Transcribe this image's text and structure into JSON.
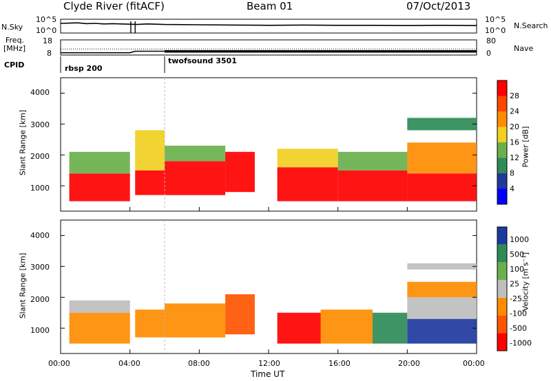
{
  "header": {
    "station": "Clyde River (fitACF)",
    "beam": "Beam 01",
    "date": "07/Oct/2013"
  },
  "noise_panel": {
    "left_label": "N.Sky",
    "left_ticks": [
      "10^5",
      "10^0"
    ],
    "right_ticks": [
      "10^5",
      "10^0"
    ],
    "right_label": "N.Search"
  },
  "freq_panel": {
    "left_label_1": "Freq.",
    "left_label_2": "[MHz]",
    "left_ticks": [
      "18",
      "8"
    ],
    "right_ticks": [
      "80",
      "0"
    ],
    "right_label": "Nave"
  },
  "cpid": {
    "label": "CPID",
    "programs": [
      "rbsp 200",
      "twofsound 3501"
    ]
  },
  "power_panel": {
    "ylabel": "Slant Range [km]",
    "yticks": [
      "4000",
      "3000",
      "2000",
      "1000"
    ],
    "colorbar_label": "Power [dB]",
    "colorbar_ticks": [
      "28",
      "24",
      "20",
      "16",
      "12",
      "8",
      "4"
    ]
  },
  "velocity_panel": {
    "ylabel": "Slant Range [km]",
    "yticks": [
      "4000",
      "3000",
      "2000",
      "1000"
    ],
    "colorbar_label": "Velocity [m s⁻¹]",
    "colorbar_ticks": [
      "1000",
      "500",
      "100",
      "25",
      "-25",
      "-100",
      "-500",
      "-1000"
    ]
  },
  "xaxis": {
    "label": "Time UT",
    "ticks": [
      "00:00",
      "04:00",
      "08:00",
      "12:00",
      "16:00",
      "20:00",
      "00:00"
    ]
  },
  "colors": {
    "power_scale": [
      "#0000ff",
      "#1e3a9e",
      "#2e8b57",
      "#6ab04c",
      "#f0d020",
      "#ff8c00",
      "#ff4500",
      "#ff0000"
    ],
    "velocity_scale": [
      "#1e3a9e",
      "#2e8b57",
      "#6ab04c",
      "#bebebe",
      "#ff8c00",
      "#ff5500",
      "#ff0000"
    ]
  },
  "chart_data": [
    {
      "type": "line",
      "x_range_hours": [
        0,
        24
      ],
      "series": [
        {
          "values": [
            [
              0,
              3.5
            ],
            [
              0.5,
              3.6
            ],
            [
              1.0,
              3.7
            ],
            [
              1.5,
              3.4
            ],
            [
              2.0,
              3.5
            ],
            [
              2.5,
              3.3
            ],
            [
              3.0,
              3.4
            ],
            [
              3.5,
              3.3
            ],
            [
              4.0,
              3.2
            ],
            [
              4.4,
              3.1
            ],
            [
              5.0,
              3.3
            ],
            [
              6.0,
              3.1
            ],
            [
              8.0,
              3.0
            ],
            [
              10.0,
              2.9
            ],
            [
              12.0,
              2.8
            ],
            [
              14.0,
              2.9
            ],
            [
              16.0,
              2.8
            ],
            [
              18.0,
              2.8
            ],
            [
              20.0,
              2.7
            ],
            [
              22.0,
              2.8
            ],
            [
              24.0,
              2.7
            ]
          ]
        }
      ],
      "ylim": [
        0,
        5
      ],
      "gaps_hours": [
        [
          4.05,
          4.3
        ]
      ]
    },
    {
      "type": "line",
      "x_range_hours": [
        0,
        24
      ],
      "series": [
        {
          "values": [
            [
              0,
              9.5
            ],
            [
              4.0,
              9.5
            ],
            [
              4.3,
              10.5
            ],
            [
              6.0,
              10.5
            ],
            [
              24.0,
              10.5
            ]
          ]
        },
        {
          "values": [
            [
              0,
              12.0
            ],
            [
              24.0,
              12.0
            ]
          ]
        }
      ],
      "ylim": [
        8,
        18
      ],
      "gaps_hours": [
        [
          4.05,
          4.3
        ]
      ]
    },
    {
      "type": "heatmap",
      "x_range_hours": [
        0,
        24
      ],
      "ylim": [
        180,
        4500
      ],
      "zlim": [
        0,
        32
      ],
      "regions": [
        {
          "t": [
            0.5,
            4.0
          ],
          "r": [
            500,
            1400
          ],
          "z": 28
        },
        {
          "t": [
            0.5,
            4.0
          ],
          "r": [
            1400,
            2100
          ],
          "z": 12
        },
        {
          "t": [
            4.3,
            6.0
          ],
          "r": [
            700,
            1500
          ],
          "z": 28
        },
        {
          "t": [
            4.3,
            6.0
          ],
          "r": [
            1500,
            2800
          ],
          "z": 16
        },
        {
          "t": [
            6.0,
            9.5
          ],
          "r": [
            700,
            1800
          ],
          "z": 28
        },
        {
          "t": [
            6.0,
            9.5
          ],
          "r": [
            1800,
            2300
          ],
          "z": 12
        },
        {
          "t": [
            9.5,
            11.2
          ],
          "r": [
            800,
            2100
          ],
          "z": 28
        },
        {
          "t": [
            12.5,
            16.0
          ],
          "r": [
            500,
            1600
          ],
          "z": 28
        },
        {
          "t": [
            12.5,
            16.0
          ],
          "r": [
            1600,
            2200
          ],
          "z": 16
        },
        {
          "t": [
            16.0,
            20.0
          ],
          "r": [
            500,
            1500
          ],
          "z": 28
        },
        {
          "t": [
            16.0,
            20.0
          ],
          "r": [
            1500,
            2100
          ],
          "z": 12
        },
        {
          "t": [
            20.0,
            24.0
          ],
          "r": [
            500,
            1400
          ],
          "z": 28
        },
        {
          "t": [
            20.0,
            24.0
          ],
          "r": [
            1400,
            2400
          ],
          "z": 20
        },
        {
          "t": [
            20.0,
            24.0
          ],
          "r": [
            2800,
            3200
          ],
          "z": 8
        }
      ]
    },
    {
      "type": "heatmap",
      "x_range_hours": [
        0,
        24
      ],
      "ylim": [
        180,
        4500
      ],
      "zlim": [
        -1200,
        1200
      ],
      "regions": [
        {
          "t": [
            0.5,
            4.0
          ],
          "r": [
            500,
            1500
          ],
          "z": -100
        },
        {
          "t": [
            0.5,
            4.0
          ],
          "r": [
            1500,
            1900
          ],
          "z": 0
        },
        {
          "t": [
            4.3,
            6.0
          ],
          "r": [
            700,
            1600
          ],
          "z": -100
        },
        {
          "t": [
            6.0,
            9.5
          ],
          "r": [
            700,
            1800
          ],
          "z": -100
        },
        {
          "t": [
            9.5,
            11.2
          ],
          "r": [
            800,
            2100
          ],
          "z": -500
        },
        {
          "t": [
            12.5,
            15.0
          ],
          "r": [
            500,
            1500
          ],
          "z": -1000
        },
        {
          "t": [
            15.0,
            18.0
          ],
          "r": [
            500,
            1600
          ],
          "z": -100
        },
        {
          "t": [
            18.0,
            20.0
          ],
          "r": [
            500,
            1500
          ],
          "z": 100
        },
        {
          "t": [
            20.0,
            24.0
          ],
          "r": [
            500,
            1300
          ],
          "z": 500
        },
        {
          "t": [
            20.0,
            24.0
          ],
          "r": [
            1300,
            2000
          ],
          "z": 0
        },
        {
          "t": [
            20.0,
            24.0
          ],
          "r": [
            2000,
            2500
          ],
          "z": -100
        },
        {
          "t": [
            20.0,
            24.0
          ],
          "r": [
            2900,
            3100
          ],
          "z": 0
        }
      ]
    }
  ]
}
